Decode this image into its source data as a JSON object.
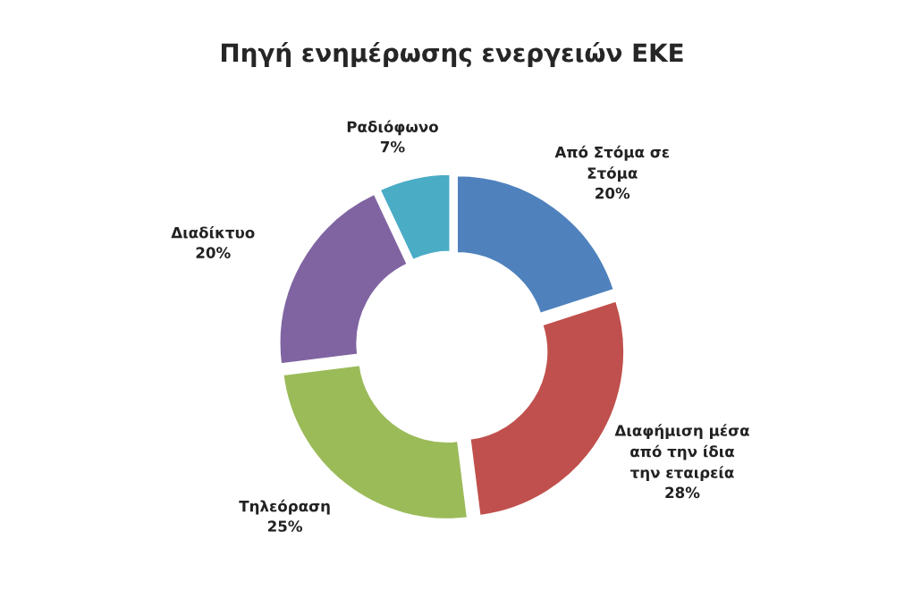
{
  "chart_data": {
    "type": "donut",
    "title": "Πηγή ενημέρωσης ενεργειών ΕΚΕ",
    "categories": [
      "Από Στόμα σε Στόμα",
      "Διαφήμιση μέσα από την ίδια την εταιρεία",
      "Τηλεόραση",
      "Διαδίκτυο",
      "Ραδιόφωνο"
    ],
    "values": [
      20,
      28,
      25,
      20,
      7
    ],
    "value_labels": [
      "20%",
      "28%",
      "25%",
      "20%",
      "7%"
    ],
    "colors": [
      "#4f81bd",
      "#c0504d",
      "#9bbb59",
      "#8064a2",
      "#4bacc6"
    ],
    "legend": false
  }
}
